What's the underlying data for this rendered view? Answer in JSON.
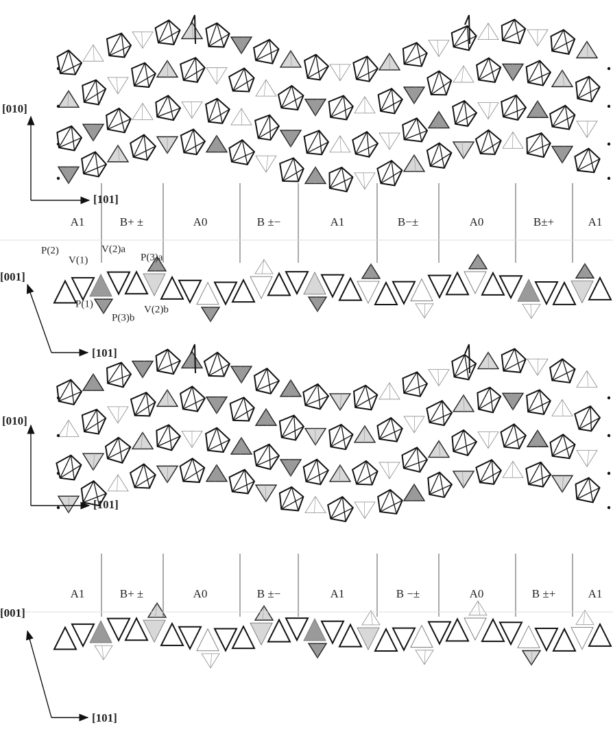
{
  "panels": [
    {
      "top_view_axes": {
        "vertical": "[010]",
        "horizontal": "[101]"
      },
      "segments": [
        "A1",
        "B+ ±",
        "A0",
        "B ±−",
        "A1",
        "B−±",
        "A0",
        "B±+",
        "A1"
      ],
      "side_view_axes": {
        "vertical": "[001]",
        "horizontal": "[101]"
      },
      "atom_labels": [
        "P(2)",
        "V(1)",
        "V(2)a",
        "P(3)a",
        "P(1)",
        "P(3)b",
        "V(2)b"
      ]
    },
    {
      "top_view_axes": {
        "vertical": "[010]",
        "horizontal": "[101]"
      },
      "segments": [
        "A1",
        "B+ ±",
        "A0",
        "B ±−",
        "A1",
        "B −±",
        "A0",
        "B ±+",
        "A1"
      ],
      "side_view_axes": {
        "vertical": "[001]",
        "horizontal": "[101]"
      }
    }
  ]
}
